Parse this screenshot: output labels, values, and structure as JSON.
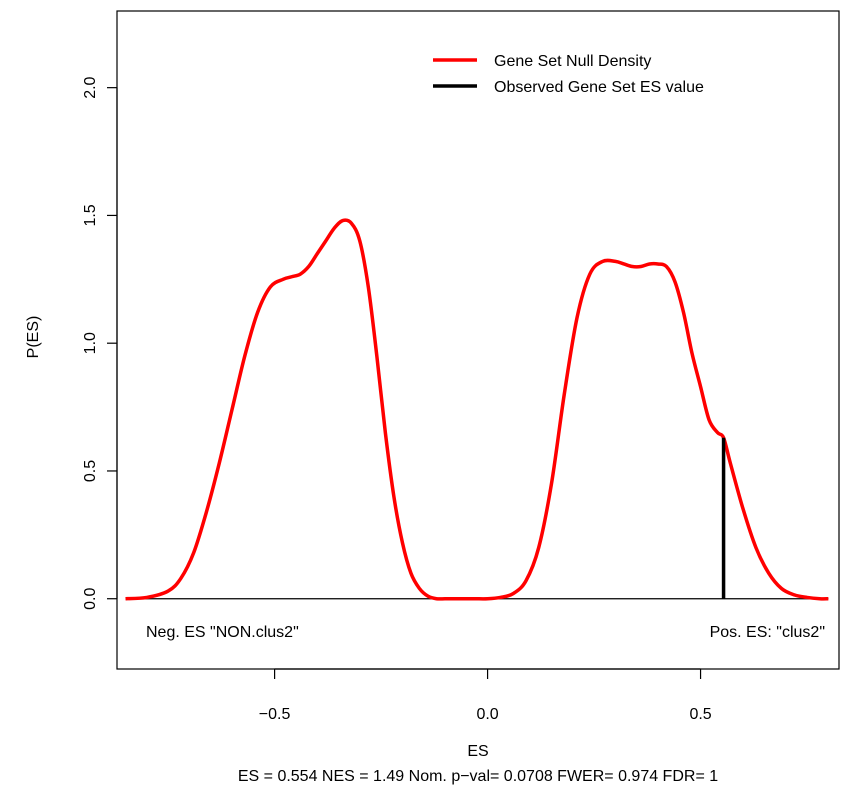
{
  "chart_data": {
    "type": "line",
    "title": "",
    "xlabel": "ES",
    "ylabel": "P(ES)",
    "subtitle": "ES = 0.554  NES = 1.49 Nom. p−val= 0.0708 FWER= 0.974 FDR= 1",
    "xlim": [
      -0.87,
      0.825
    ],
    "ylim": [
      -0.275,
      2.3
    ],
    "x_ticks": [
      -0.5,
      0.0,
      0.5
    ],
    "x_tick_labels": [
      "−0.5",
      "0.0",
      "0.5"
    ],
    "y_ticks": [
      0.0,
      0.5,
      1.0,
      1.5,
      2.0
    ],
    "y_tick_labels": [
      "0.0",
      "0.5",
      "1.0",
      "1.5",
      "2.0"
    ],
    "grid": false,
    "legend_position": "top-right",
    "baseline": 0,
    "series": [
      {
        "name": "Gene Set Null Density",
        "color": "#ff0000",
        "x": [
          -0.85,
          -0.8,
          -0.75,
          -0.72,
          -0.69,
          -0.66,
          -0.63,
          -0.6,
          -0.57,
          -0.54,
          -0.51,
          -0.48,
          -0.46,
          -0.44,
          -0.42,
          -0.4,
          -0.38,
          -0.36,
          -0.34,
          -0.32,
          -0.3,
          -0.28,
          -0.26,
          -0.24,
          -0.22,
          -0.2,
          -0.18,
          -0.16,
          -0.14,
          -0.12,
          -0.1,
          -0.08,
          -0.06,
          -0.03,
          0.0,
          0.03,
          0.06,
          0.09,
          0.12,
          0.15,
          0.18,
          0.21,
          0.24,
          0.27,
          0.3,
          0.32,
          0.34,
          0.36,
          0.38,
          0.4,
          0.42,
          0.44,
          0.46,
          0.48,
          0.5,
          0.52,
          0.54,
          0.554,
          0.57,
          0.6,
          0.63,
          0.66,
          0.69,
          0.72,
          0.75,
          0.78,
          0.8
        ],
        "y": [
          0.0,
          0.005,
          0.03,
          0.08,
          0.18,
          0.34,
          0.53,
          0.74,
          0.95,
          1.12,
          1.22,
          1.25,
          1.26,
          1.27,
          1.3,
          1.35,
          1.4,
          1.45,
          1.48,
          1.47,
          1.4,
          1.22,
          0.95,
          0.65,
          0.4,
          0.22,
          0.1,
          0.04,
          0.01,
          0.0,
          0.0,
          0.0,
          0.0,
          0.0,
          0.0,
          0.005,
          0.02,
          0.07,
          0.2,
          0.45,
          0.8,
          1.1,
          1.27,
          1.32,
          1.32,
          1.31,
          1.3,
          1.3,
          1.31,
          1.31,
          1.3,
          1.24,
          1.12,
          0.96,
          0.83,
          0.7,
          0.65,
          0.63,
          0.53,
          0.35,
          0.2,
          0.1,
          0.04,
          0.015,
          0.005,
          0.0,
          0.0
        ]
      },
      {
        "name": "Observed Gene Set ES value",
        "color": "#000000",
        "x": [
          0.554,
          0.554
        ],
        "y": [
          0.0,
          0.63
        ]
      }
    ],
    "annotations": [
      {
        "text": "Neg. ES \"NON.clus2\"",
        "position": "bottom-left"
      },
      {
        "text": "Pos. ES: \"clus2\"",
        "position": "bottom-right"
      }
    ]
  }
}
